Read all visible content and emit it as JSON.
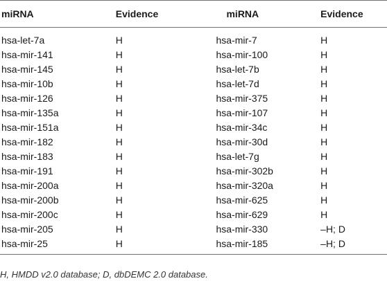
{
  "table": {
    "headers": [
      "miRNA",
      "Evidence",
      "miRNA",
      "Evidence"
    ],
    "rows": [
      [
        "hsa-let-7a",
        "H",
        "hsa-mir-7",
        "H"
      ],
      [
        "hsa-mir-141",
        "H",
        "hsa-mir-100",
        "H"
      ],
      [
        "hsa-mir-145",
        "H",
        "hsa-let-7b",
        "H"
      ],
      [
        "hsa-mir-10b",
        "H",
        "hsa-let-7d",
        "H"
      ],
      [
        "hsa-mir-126",
        "H",
        "hsa-mir-375",
        "H"
      ],
      [
        "hsa-mir-135a",
        "H",
        "hsa-mir-107",
        "H"
      ],
      [
        "hsa-mir-151a",
        "H",
        "hsa-mir-34c",
        "H"
      ],
      [
        "hsa-mir-182",
        "H",
        "hsa-mir-30d",
        "H"
      ],
      [
        "hsa-mir-183",
        "H",
        "hsa-let-7g",
        "H"
      ],
      [
        "hsa-mir-191",
        "H",
        "hsa-mir-302b",
        "H"
      ],
      [
        "hsa-mir-200a",
        "H",
        "hsa-mir-320a",
        "H"
      ],
      [
        "hsa-mir-200b",
        "H",
        "hsa-mir-625",
        "H"
      ],
      [
        "hsa-mir-200c",
        "H",
        "hsa-mir-629",
        "H"
      ],
      [
        "hsa-mir-205",
        "H",
        "hsa-mir-330",
        "–H; D"
      ],
      [
        "hsa-mir-25",
        "H",
        "hsa-mir-185",
        "–H; D"
      ]
    ]
  },
  "footnote": "H, HMDD v2.0 database; D, dbDEMC 2.0 database."
}
